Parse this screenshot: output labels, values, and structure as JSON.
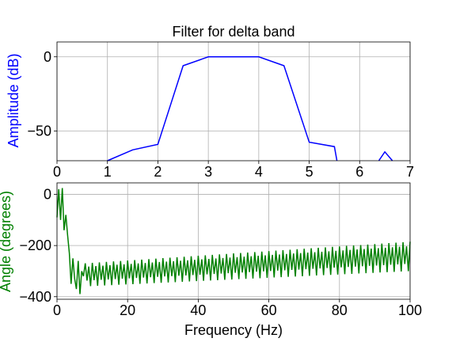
{
  "chart_data": [
    {
      "type": "line",
      "title": "Filter for delta band",
      "xlabel": "",
      "ylabel": "Amplitude (dB)",
      "ylabel_color": "#0000ff",
      "xlim": [
        0,
        7
      ],
      "ylim": [
        -70,
        10
      ],
      "xticks": [
        0,
        1,
        2,
        3,
        4,
        5,
        6,
        7
      ],
      "yticks": [
        0,
        -50
      ],
      "grid": true,
      "series": [
        {
          "color": "#0000ff",
          "x": [
            1.0,
            1.5,
            2.0,
            2.5,
            3.0,
            3.5,
            4.0,
            4.5,
            5.0,
            5.5,
            5.55,
            6.5,
            6.65
          ],
          "y": [
            -70.3,
            -62.7,
            -59.0,
            -6.0,
            0.0,
            0.0,
            0.0,
            -6.0,
            -57.5,
            -60.5,
            -70.3,
            -64.0,
            -70.3
          ],
          "segments_break_after": [
            9
          ]
        }
      ]
    },
    {
      "type": "line",
      "title": "",
      "xlabel": "Frequency (Hz)",
      "ylabel": "Angle (degrees)",
      "ylabel_color": "#008000",
      "xlim": [
        0,
        100
      ],
      "ylim": [
        -410,
        45
      ],
      "xticks": [
        0,
        20,
        40,
        60,
        80,
        100
      ],
      "yticks": [
        0,
        -200,
        -400
      ],
      "grid": true,
      "series": [
        {
          "color": "#008000",
          "x": [
            0.0,
            0.5,
            1.0,
            1.5,
            2.0,
            2.5,
            3.0,
            3.5,
            4.0,
            4.5,
            5.0,
            5.5,
            6.0,
            6.5,
            7.0,
            7.5
          ],
          "y": [
            -90,
            20,
            -100,
            25,
            -140,
            -80,
            -160,
            -230,
            -350,
            -250,
            -330,
            -370,
            -260,
            -390,
            -300,
            -320
          ],
          "oscillation": {
            "x_start": 7.5,
            "x_end": 100,
            "step": 0.5,
            "high_start": -270,
            "high_end": -185,
            "low_start": -360,
            "low_end": -300
          }
        }
      ]
    }
  ]
}
